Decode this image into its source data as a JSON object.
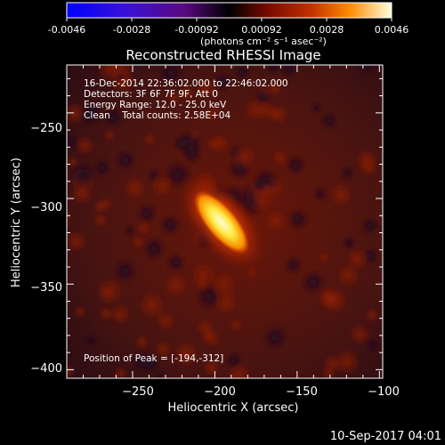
{
  "colorbar": {
    "ticks": [
      "-0.0046",
      "-0.0028",
      "-0.00092",
      "0.00092",
      "0.0028",
      "0.0046"
    ],
    "units": "(photons cm⁻² s⁻¹ asec⁻²)",
    "range": [
      -0.0046,
      0.0046
    ]
  },
  "title": "Reconstructed RHESSI Image",
  "info": {
    "time_range": "16-Dec-2014 22:36:02.000 to 22:46:02.000",
    "detectors": "Detectors: 3F 6F 7F 9F, Att 0",
    "energy": "Energy Range: 12.0 - 25.0 keV",
    "clean": "Clean    Total counts: 2.58E+04"
  },
  "peak_label": "Position of Peak = [-194,-312]",
  "x_axis": {
    "label": "Heliocentric X (arcsec)",
    "range": [
      -290,
      -98
    ],
    "ticks": [
      {
        "value": -250,
        "label": "−250"
      },
      {
        "value": -200,
        "label": "−200"
      },
      {
        "value": -150,
        "label": "−150"
      },
      {
        "value": -100,
        "label": "−100"
      }
    ]
  },
  "y_axis": {
    "label": "Heliocentric Y (arcsec)",
    "range": [
      -405,
      -222
    ],
    "ticks": [
      {
        "value": -250,
        "label": "−250"
      },
      {
        "value": -300,
        "label": "−300"
      },
      {
        "value": -350,
        "label": "−350"
      },
      {
        "value": -400,
        "label": "−400"
      }
    ]
  },
  "source": {
    "center": [
      -195,
      -308
    ],
    "orientation": "elongated, tilted from upper-left to lower-right"
  },
  "timestamp": "10-Sep-2017 04:01"
}
